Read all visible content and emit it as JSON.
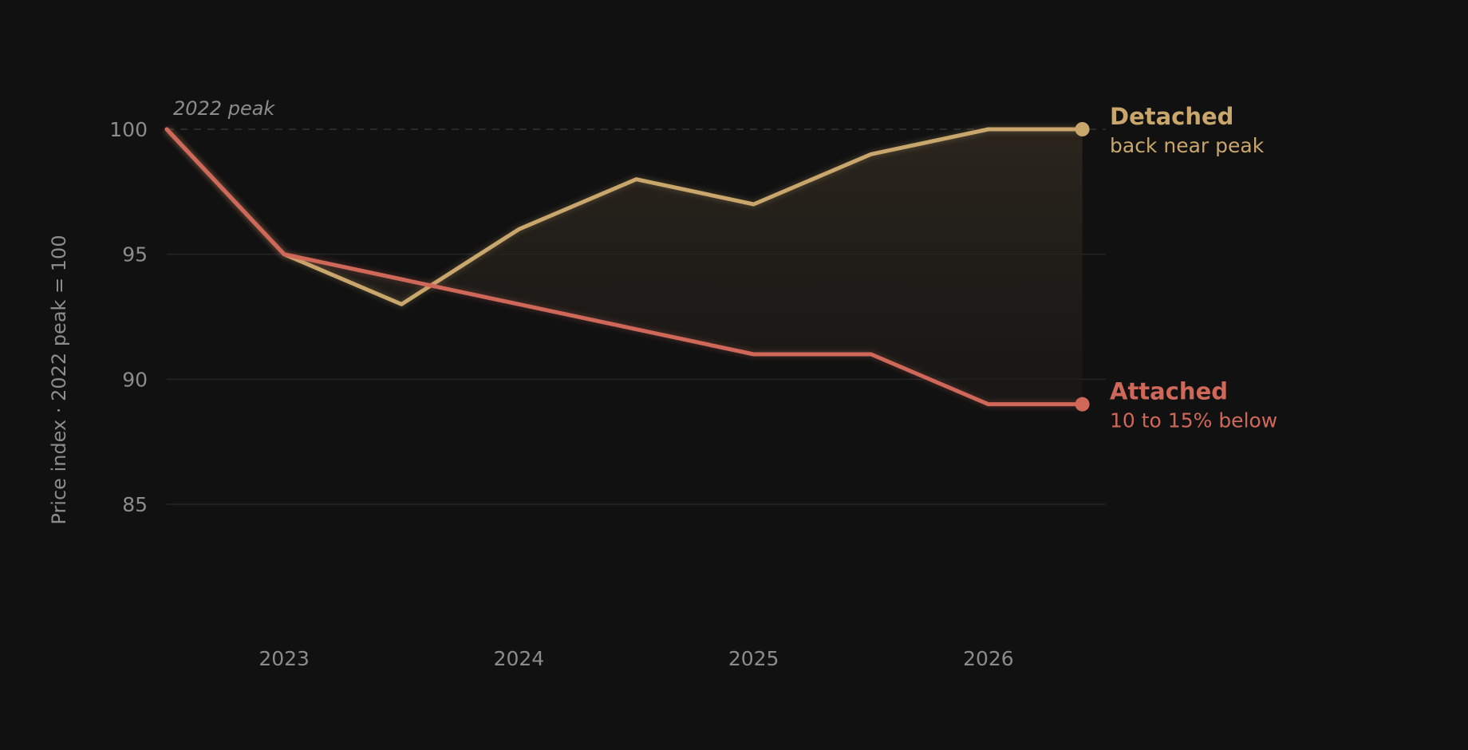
{
  "chart_data": {
    "type": "line",
    "title": "",
    "xlabel": "",
    "ylabel": "Price index · 2022 peak = 100",
    "xlim": [
      2022.5,
      2026.5
    ],
    "ylim": [
      80,
      104
    ],
    "yticks": [
      85,
      90,
      95,
      100
    ],
    "xticks": [
      2023,
      2024,
      2025,
      2026
    ],
    "grid": true,
    "reference_line": {
      "y": 100,
      "label": "2022 peak"
    },
    "shade_between_series": true,
    "series": [
      {
        "name": "Detached",
        "note": "back near peak",
        "color": "#c9a66b",
        "x": [
          2022.5,
          2023.0,
          2023.5,
          2024.0,
          2024.5,
          2025.0,
          2025.5,
          2026.0,
          2026.4
        ],
        "y": [
          100,
          95,
          93,
          96,
          98,
          97,
          99,
          100,
          100
        ]
      },
      {
        "name": "Attached",
        "note": "10 to 15% below",
        "color": "#d0685a",
        "x": [
          2022.5,
          2023.0,
          2023.5,
          2024.0,
          2024.5,
          2025.0,
          2025.5,
          2026.0,
          2026.4
        ],
        "y": [
          100,
          95,
          94,
          93,
          92,
          91,
          91,
          89,
          89
        ]
      }
    ]
  },
  "colors": {
    "background": "#111111",
    "grid": "#262626",
    "text": "#8c8c8c",
    "shade": "#2a2520"
  }
}
